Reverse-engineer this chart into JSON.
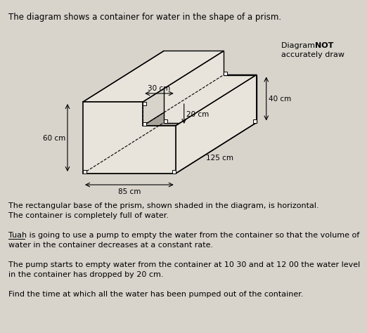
{
  "title": "The diagram shows a container for water in the shape of a prism.",
  "diagram_not": "Diagram ",
  "diagram_not_bold": "NOT",
  "diagram_draw": "accurately draw",
  "label_30cm": "30 cm",
  "label_20cm": "20 cm",
  "label_40cm": "40 cm",
  "label_60cm": "60 cm",
  "label_85cm": "85 cm",
  "label_125cm": "125 cm",
  "para1_line1": "The rectangular base of the prism, shown shaded in the diagram, is horizontal.",
  "para1_line2": "The container is completely full of water.",
  "para2_line1": "Tuah is going to use a pump to empty the water from the container so that the volume of",
  "para2_line2": "water in the container decreases at a constant rate.",
  "para3_line1": "The pump starts to empty water from the container at 10 30 and at 12 00 the water level",
  "para3_line2": "in the container has dropped by 20 cm.",
  "para4": "Find the time at which all the water has been pumped out of the container.",
  "bg_color": "#d8d4cc",
  "prism_shade_color": "#a8a49c",
  "line_color": "#000000",
  "text_color": "#000000",
  "face_color": "#e8e4dc"
}
